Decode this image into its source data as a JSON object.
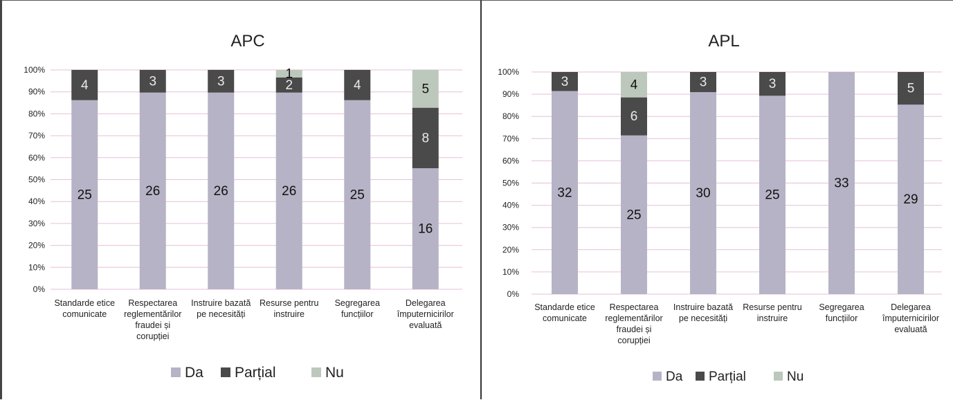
{
  "chart_data": [
    {
      "type": "bar",
      "stacked": "percent",
      "title": "APC",
      "categories": [
        [
          "Standarde etice",
          "comunicate"
        ],
        [
          "Respectarea",
          "reglementărilor",
          "fraudei și",
          "corupției"
        ],
        [
          "Instruire bazată",
          "pe necesități"
        ],
        [
          "Resurse pentru",
          "instruire"
        ],
        [
          "Segregarea",
          "funcțiilor"
        ],
        [
          "Delegarea",
          "împuternicirilor",
          "evaluată"
        ]
      ],
      "series": [
        {
          "name": "Da",
          "values": [
            25,
            26,
            26,
            26,
            25,
            16
          ]
        },
        {
          "name": "Parțial",
          "values": [
            4,
            3,
            3,
            2,
            4,
            8
          ]
        },
        {
          "name": "Nu",
          "values": [
            0,
            0,
            0,
            1,
            0,
            5
          ]
        }
      ],
      "y_ticks": [
        "0%",
        "10%",
        "20%",
        "30%",
        "40%",
        "50%",
        "60%",
        "70%",
        "80%",
        "90%",
        "100%"
      ],
      "ylim": [
        0,
        100
      ],
      "grid": true,
      "legend": "bottom"
    },
    {
      "type": "bar",
      "stacked": "percent",
      "title": "APL",
      "categories": [
        [
          "Standarde etice",
          "comunicate"
        ],
        [
          "Respectarea",
          "reglementărilor",
          "fraudei și",
          "corupției"
        ],
        [
          "Instruire bazată",
          "pe necesități"
        ],
        [
          "Resurse pentru",
          "instruire"
        ],
        [
          "Segregarea",
          "funcțiilor"
        ],
        [
          "Delegarea",
          "împuternicirilor",
          "evaluată"
        ]
      ],
      "series": [
        {
          "name": "Da",
          "values": [
            32,
            25,
            30,
            25,
            33,
            29
          ]
        },
        {
          "name": "Parțial",
          "values": [
            3,
            6,
            3,
            3,
            0,
            5
          ]
        },
        {
          "name": "Nu",
          "values": [
            0,
            4,
            0,
            0,
            0,
            0
          ]
        }
      ],
      "y_ticks": [
        "0%",
        "10%",
        "20%",
        "30%",
        "40%",
        "50%",
        "60%",
        "70%",
        "80%",
        "90%",
        "100%"
      ],
      "ylim": [
        0,
        100
      ],
      "grid": true,
      "legend": "bottom"
    }
  ],
  "colors": {
    "Da": "#b7b3c6",
    "Parțial": "#4a4a4a",
    "Nu": "#bcc8bc",
    "grid": "#e6bfd9"
  }
}
